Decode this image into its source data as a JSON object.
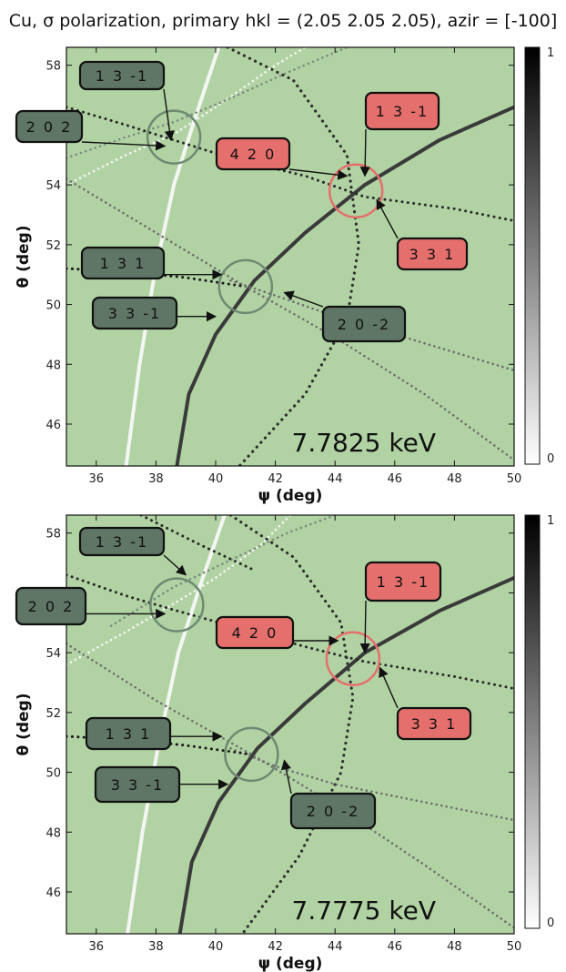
{
  "title": "Cu, σ polarization, primary hkl = (2.05 2.05 2.05), azir = [-100]",
  "colors": {
    "background": "#b1d3a3",
    "label_gray": "#5f7566",
    "label_red": "#e56f6c",
    "circle_gray": "#6e8a73",
    "circle_red": "#e56f6c"
  },
  "chart_data": [
    {
      "type": "scatter",
      "energy_label": "7.7825 keV",
      "xlabel": "ψ (deg)",
      "ylabel": "θ (deg)",
      "xlim": [
        35,
        50
      ],
      "ylim": [
        44.6,
        58.6
      ],
      "xticks": [
        36,
        38,
        40,
        42,
        44,
        46,
        48,
        50
      ],
      "yticks": [
        46,
        48,
        50,
        52,
        54,
        56,
        58
      ],
      "colorbar": {
        "min": 0,
        "max": 1,
        "ticks": [
          "0",
          "1"
        ]
      },
      "grid": false,
      "circles": [
        {
          "x": 38.6,
          "y": 55.6,
          "color": "gray"
        },
        {
          "x": 41.0,
          "y": 50.6,
          "color": "gray"
        },
        {
          "x": 44.7,
          "y": 53.8,
          "color": "red"
        }
      ],
      "labels": [
        {
          "text": "1 3 -1",
          "color": "gray",
          "target": [
            38.5,
            55.5
          ]
        },
        {
          "text": "2 0 2",
          "color": "gray",
          "target": [
            38.3,
            55.3
          ]
        },
        {
          "text": "4 2 0",
          "color": "red",
          "target": [
            44.4,
            54.3
          ]
        },
        {
          "text": "1 3 -1",
          "color": "red",
          "target": [
            45.0,
            54.3
          ]
        },
        {
          "text": "3 3 1",
          "color": "red",
          "target": [
            45.4,
            53.5
          ]
        },
        {
          "text": "1 3 1",
          "color": "gray",
          "target": [
            40.2,
            51.0
          ]
        },
        {
          "text": "3 3 -1",
          "color": "gray",
          "target": [
            40.0,
            49.6
          ]
        },
        {
          "text": "2 0 -2",
          "color": "gray",
          "target": [
            42.3,
            50.4
          ]
        }
      ],
      "series": [
        {
          "id": "bright-curve",
          "style": "solid",
          "color": "#f4f6f4",
          "width": 4,
          "points": [
            [
              37.0,
              44.6
            ],
            [
              37.45,
              48.0
            ],
            [
              37.95,
              51.0
            ],
            [
              38.6,
              54.0
            ],
            [
              39.3,
              56.2
            ],
            [
              40.1,
              58.6
            ]
          ]
        },
        {
          "id": "dark-arc",
          "style": "dots",
          "color": "#2e2e2e",
          "width": 3.2,
          "points": [
            [
              40.4,
              58.6
            ],
            [
              42.6,
              57.5
            ],
            [
              44.4,
              55.0
            ],
            [
              44.8,
              52.0
            ],
            [
              44.4,
              49.5
            ],
            [
              43.0,
              47.0
            ],
            [
              40.8,
              44.6
            ]
          ]
        },
        {
          "id": "dark-rise",
          "style": "solid",
          "color": "#3a3a3a",
          "width": 4,
          "points": [
            [
              38.7,
              44.6
            ],
            [
              39.1,
              47.0
            ],
            [
              40.0,
              49.0
            ],
            [
              41.3,
              50.8
            ],
            [
              43.0,
              52.4
            ],
            [
              45.0,
              54.0
            ],
            [
              47.5,
              55.5
            ],
            [
              50.0,
              56.6
            ]
          ]
        },
        {
          "id": "white-dots-lower",
          "style": "dots",
          "color": "#f5f5f5",
          "width": 2.6,
          "points": [
            [
              35.0,
              54.0
            ],
            [
              37.0,
              55.0
            ],
            [
              38.6,
              55.7
            ],
            [
              40.0,
              56.6
            ],
            [
              42.0,
              58.0
            ],
            [
              43.0,
              58.6
            ]
          ]
        },
        {
          "id": "gray-dots-upper",
          "style": "dots",
          "color": "#7e8c80",
          "width": 2.6,
          "points": [
            [
              35.0,
              54.9
            ],
            [
              37.0,
              55.6
            ],
            [
              38.6,
              56.1
            ],
            [
              40.5,
              56.9
            ],
            [
              42.5,
              57.8
            ],
            [
              44.4,
              58.6
            ]
          ]
        },
        {
          "id": "dark-dots-steep",
          "style": "dots",
          "color": "#2a2a2a",
          "width": 3,
          "points": [
            [
              35.0,
              56.6
            ],
            [
              37.0,
              56.0
            ],
            [
              38.6,
              55.5
            ],
            [
              40.5,
              54.9
            ],
            [
              43.0,
              54.3
            ],
            [
              45.0,
              53.6
            ],
            [
              48.0,
              53.2
            ],
            [
              50.0,
              52.8
            ]
          ]
        },
        {
          "id": "gray-diagonal",
          "style": "dots",
          "color": "#6f6f6f",
          "width": 2.6,
          "points": [
            [
              35.0,
              54.2
            ],
            [
              38.0,
              52.4
            ],
            [
              41.0,
              50.6
            ],
            [
              44.0,
              48.9
            ],
            [
              47.0,
              47.0
            ],
            [
              50.0,
              44.8
            ]
          ]
        },
        {
          "id": "gray-dots-mid",
          "style": "dots",
          "color": "#6f6f6f",
          "width": 2.6,
          "points": [
            [
              40.5,
              50.8
            ],
            [
              42.0,
              50.3
            ],
            [
              44.0,
              49.6
            ],
            [
              46.0,
              49.0
            ],
            [
              48.0,
              48.4
            ],
            [
              50.0,
              47.8
            ]
          ]
        },
        {
          "id": "dark-dots-mid",
          "style": "dots",
          "color": "#1a1a1a",
          "width": 3,
          "points": [
            [
              35.0,
              51.2
            ],
            [
              37.0,
              51.1
            ],
            [
              39.0,
              50.9
            ],
            [
              41.0,
              50.6
            ]
          ]
        }
      ]
    },
    {
      "type": "scatter",
      "energy_label": "7.7775 keV",
      "xlabel": "ψ (deg)",
      "ylabel": "θ (deg)",
      "xlim": [
        35,
        50
      ],
      "ylim": [
        44.6,
        58.6
      ],
      "xticks": [
        36,
        38,
        40,
        42,
        44,
        46,
        48,
        50
      ],
      "yticks": [
        46,
        48,
        50,
        52,
        54,
        56,
        58
      ],
      "colorbar": {
        "min": 0,
        "max": 1,
        "ticks": [
          "0",
          "1"
        ]
      },
      "grid": false,
      "circles": [
        {
          "x": 38.7,
          "y": 55.6,
          "color": "gray"
        },
        {
          "x": 41.2,
          "y": 50.6,
          "color": "gray"
        },
        {
          "x": 44.6,
          "y": 53.8,
          "color": "red"
        }
      ],
      "labels": [
        {
          "text": "1 3 -1",
          "color": "gray",
          "target": [
            39.0,
            56.6
          ]
        },
        {
          "text": "2 0 2",
          "color": "gray",
          "target": [
            38.3,
            55.3
          ]
        },
        {
          "text": "4 2 0",
          "color": "red",
          "target": [
            44.1,
            54.4
          ]
        },
        {
          "text": "1 3 -1",
          "color": "red",
          "target": [
            45.0,
            54.0
          ]
        },
        {
          "text": "3 3 1",
          "color": "red",
          "target": [
            45.5,
            53.5
          ]
        },
        {
          "text": "1 3 1",
          "color": "gray",
          "target": [
            40.2,
            51.2
          ]
        },
        {
          "text": "3 3 -1",
          "color": "gray",
          "target": [
            40.4,
            49.6
          ]
        },
        {
          "text": "2 0 -2",
          "color": "gray",
          "target": [
            42.3,
            50.4
          ]
        }
      ],
      "series": [
        {
          "id": "bright-curve",
          "style": "solid",
          "color": "#f4f6f4",
          "width": 4,
          "points": [
            [
              37.05,
              44.6
            ],
            [
              37.55,
              48.0
            ],
            [
              38.1,
              51.0
            ],
            [
              38.75,
              54.0
            ],
            [
              39.5,
              56.3
            ],
            [
              40.3,
              58.6
            ]
          ]
        },
        {
          "id": "dark-arc",
          "style": "dots",
          "color": "#2e2e2e",
          "width": 3.2,
          "points": [
            [
              40.5,
              58.6
            ],
            [
              42.6,
              57.2
            ],
            [
              44.2,
              55.0
            ],
            [
              44.6,
              52.5
            ],
            [
              44.2,
              50.0
            ],
            [
              42.8,
              47.2
            ],
            [
              40.9,
              44.6
            ]
          ]
        },
        {
          "id": "dark-rise",
          "style": "solid",
          "color": "#3a3a3a",
          "width": 4,
          "points": [
            [
              38.8,
              44.6
            ],
            [
              39.2,
              47.0
            ],
            [
              40.1,
              49.0
            ],
            [
              41.4,
              50.8
            ],
            [
              43.0,
              52.3
            ],
            [
              45.0,
              54.0
            ],
            [
              47.5,
              55.4
            ],
            [
              50.0,
              56.5
            ]
          ]
        },
        {
          "id": "white-dots-lower",
          "style": "dots",
          "color": "#f5f5f5",
          "width": 2.6,
          "points": [
            [
              35.0,
              53.6
            ],
            [
              37.0,
              54.7
            ],
            [
              38.7,
              55.7
            ],
            [
              40.0,
              56.5
            ],
            [
              41.5,
              57.6
            ],
            [
              42.5,
              58.6
            ]
          ]
        },
        {
          "id": "gray-dots-upper",
          "style": "dots",
          "color": "#7e8c80",
          "width": 2.6,
          "points": [
            [
              36.5,
              54.9
            ],
            [
              38.6,
              56.2
            ],
            [
              40.5,
              57.1
            ],
            [
              42.4,
              58.0
            ],
            [
              44.0,
              58.6
            ]
          ]
        },
        {
          "id": "dark-dots-steep",
          "style": "dots",
          "color": "#2a2a2a",
          "width": 3,
          "points": [
            [
              35.0,
              56.6
            ],
            [
              37.0,
              55.9
            ],
            [
              38.7,
              55.4
            ],
            [
              40.5,
              54.9
            ],
            [
              43.0,
              54.2
            ],
            [
              45.0,
              53.7
            ],
            [
              48.0,
              53.2
            ],
            [
              50.0,
              52.8
            ]
          ]
        },
        {
          "id": "gray-diagonal",
          "style": "dots",
          "color": "#6f6f6f",
          "width": 2.6,
          "points": [
            [
              35.0,
              54.3
            ],
            [
              38.0,
              52.4
            ],
            [
              41.2,
              50.6
            ],
            [
              44.0,
              48.9
            ],
            [
              47.0,
              46.9
            ],
            [
              50.0,
              44.8
            ]
          ]
        },
        {
          "id": "gray-dots-mid",
          "style": "dots",
          "color": "#6f6f6f",
          "width": 2.6,
          "points": [
            [
              40.5,
              50.8
            ],
            [
              42.0,
              50.2
            ],
            [
              44.0,
              49.6
            ],
            [
              46.0,
              49.2
            ],
            [
              48.0,
              48.8
            ],
            [
              50.0,
              48.4
            ]
          ]
        },
        {
          "id": "dark-dots-mid",
          "style": "dots",
          "color": "#1a1a1a",
          "width": 3,
          "points": [
            [
              35.0,
              51.2
            ],
            [
              37.0,
              51.1
            ],
            [
              39.0,
              50.9
            ],
            [
              41.2,
              50.6
            ]
          ]
        },
        {
          "id": "dark-dots-top",
          "style": "dots",
          "color": "#2a2a2a",
          "width": 3,
          "points": [
            [
              37.5,
              58.6
            ],
            [
              39.5,
              57.6
            ],
            [
              41.2,
              56.8
            ]
          ]
        }
      ]
    }
  ]
}
